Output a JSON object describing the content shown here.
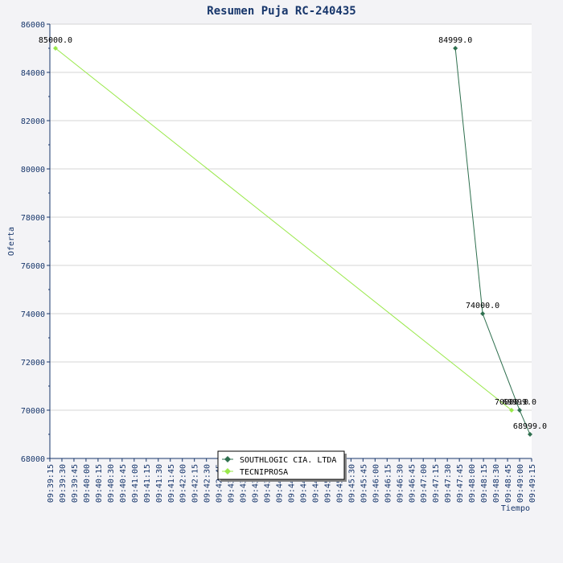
{
  "chart_data": {
    "type": "line",
    "title": "Resumen Puja RC-240435",
    "xlabel": "Tiempo",
    "ylabel": "Oferta",
    "ylim": [
      68000,
      86000
    ],
    "yticks": [
      68000,
      70000,
      72000,
      74000,
      76000,
      78000,
      80000,
      82000,
      84000,
      86000
    ],
    "xticks": [
      "09:39:15",
      "09:39:30",
      "09:39:45",
      "09:40:00",
      "09:40:15",
      "09:40:30",
      "09:40:45",
      "09:41:00",
      "09:41:15",
      "09:41:30",
      "09:41:45",
      "09:42:00",
      "09:42:15",
      "09:42:30",
      "09:42:45",
      "09:43:00",
      "09:43:15",
      "09:43:30",
      "09:43:45",
      "09:44:00",
      "09:44:15",
      "09:44:30",
      "09:44:45",
      "09:45:00",
      "09:45:15",
      "09:45:30",
      "09:45:45",
      "09:46:00",
      "09:46:15",
      "09:46:30",
      "09:46:45",
      "09:47:00",
      "09:47:15",
      "09:47:30",
      "09:47:45",
      "09:48:00",
      "09:48:15",
      "09:48:30",
      "09:48:45",
      "09:49:00",
      "09:49:15"
    ],
    "xlim": [
      "09:39:15",
      "09:49:15"
    ],
    "grid": true,
    "legend_position": "bottom-center",
    "series": [
      {
        "name": "SOUTHLOGIC CIA. LTDA",
        "color": "#2e6f4e",
        "x": [
          "09:47:40",
          "09:48:14",
          "09:49:00",
          "09:49:13"
        ],
        "values": [
          84999.0,
          74000.0,
          69999.0,
          68999.0
        ],
        "labels": [
          "84999.0",
          "74000.0",
          "69999.0",
          "68999.0"
        ]
      },
      {
        "name": "TECNIPROSA",
        "color": "#99e84a",
        "x": [
          "09:39:22",
          "09:48:50"
        ],
        "values": [
          85000.0,
          70000.0
        ],
        "labels": [
          "85000.0",
          "70000.0"
        ]
      }
    ]
  }
}
